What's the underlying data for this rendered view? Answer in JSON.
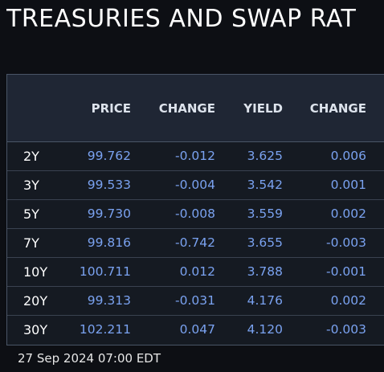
{
  "title": "TREASURIES AND SWAP RAT",
  "columns": {
    "price": "PRICE",
    "change1": "CHANGE",
    "yield": "YIELD",
    "change2": "CHANGE"
  },
  "rows": [
    {
      "tenor": "2Y",
      "price": "99.762",
      "change1": "-0.012",
      "yield": "3.625",
      "change2": "0.006"
    },
    {
      "tenor": "3Y",
      "price": "99.533",
      "change1": "-0.004",
      "yield": "3.542",
      "change2": "0.001"
    },
    {
      "tenor": "5Y",
      "price": "99.730",
      "change1": "-0.008",
      "yield": "3.559",
      "change2": "0.002"
    },
    {
      "tenor": "7Y",
      "price": "99.816",
      "change1": "-0.742",
      "yield": "3.655",
      "change2": "-0.003"
    },
    {
      "tenor": "10Y",
      "price": "100.711",
      "change1": "0.012",
      "yield": "3.788",
      "change2": "-0.001"
    },
    {
      "tenor": "20Y",
      "price": "99.313",
      "change1": "-0.031",
      "yield": "4.176",
      "change2": "0.002"
    },
    {
      "tenor": "30Y",
      "price": "102.211",
      "change1": "0.047",
      "yield": "4.120",
      "change2": "-0.003"
    }
  ],
  "timestamp": "27 Sep 2024 07:00 EDT",
  "colors": {
    "background": "#0d0f14",
    "header_bg": "#1f2634",
    "value_text": "#7aa2f0",
    "tenor_text": "#ffffff"
  }
}
